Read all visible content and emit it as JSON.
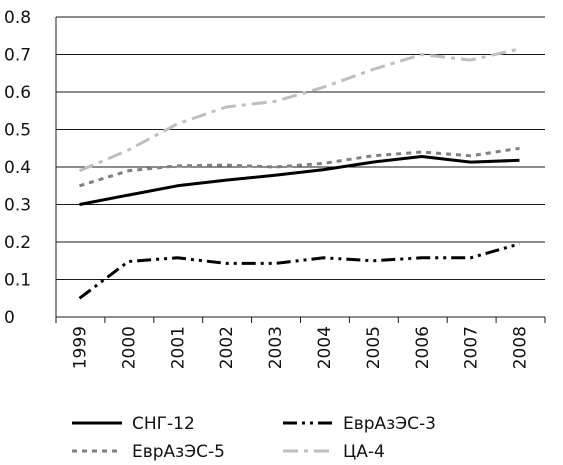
{
  "chart_data": {
    "type": "line",
    "title": "",
    "xlabel": "",
    "ylabel": "",
    "categories": [
      "1999",
      "2000",
      "2001",
      "2002",
      "2003",
      "2004",
      "2005",
      "2006",
      "2007",
      "2008"
    ],
    "ylim": [
      0,
      0.8
    ],
    "yticks": [
      "0",
      "0.1",
      "0.2",
      "0.3",
      "0.4",
      "0.5",
      "0.6",
      "0.7",
      "0.8"
    ],
    "grid": "horizontal",
    "legend_position": "bottom",
    "series": [
      {
        "name": "СНГ-12",
        "color": "#000000",
        "dash": "solid",
        "values": [
          0.3,
          0.325,
          0.35,
          0.365,
          0.378,
          0.393,
          0.413,
          0.428,
          0.413,
          0.418
        ]
      },
      {
        "name": "ЕврАзЭС-3",
        "color": "#000000",
        "dash": "dash-dot-dot",
        "values": [
          0.05,
          0.148,
          0.158,
          0.143,
          0.143,
          0.158,
          0.15,
          0.158,
          0.158,
          0.195
        ]
      },
      {
        "name": "ЕврАзЭС-5",
        "color": "#808080",
        "dash": "dotted",
        "values": [
          0.35,
          0.39,
          0.403,
          0.405,
          0.4,
          0.41,
          0.43,
          0.44,
          0.43,
          0.45
        ]
      },
      {
        "name": "ЦА-4",
        "color": "#bfbfbf",
        "dash": "dash-dot",
        "values": [
          0.39,
          0.445,
          0.515,
          0.56,
          0.575,
          0.613,
          0.66,
          0.7,
          0.685,
          0.715
        ]
      }
    ]
  }
}
